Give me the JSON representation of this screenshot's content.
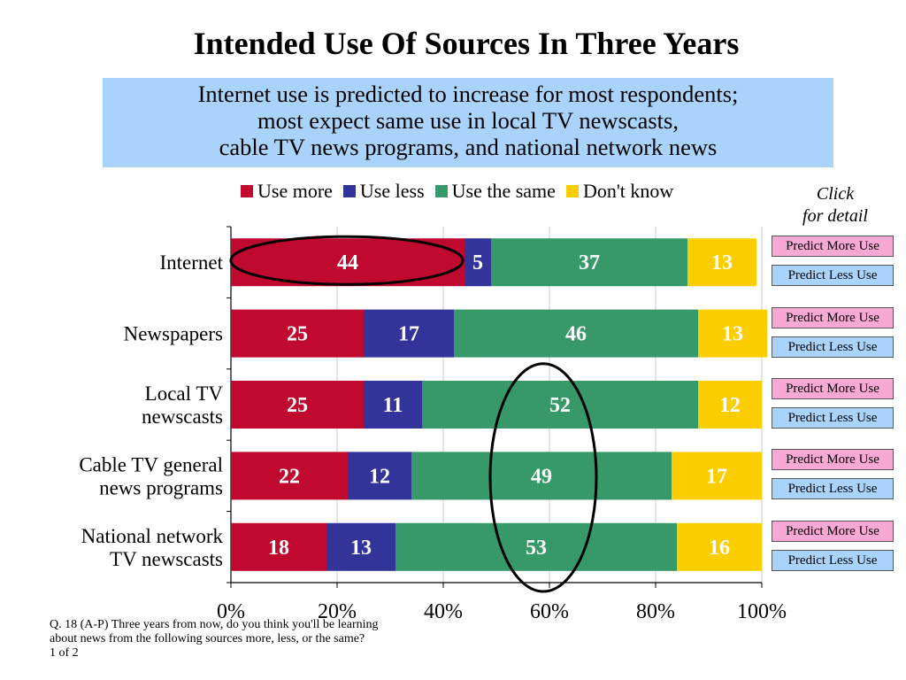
{
  "title": "Intended Use Of Sources In Three Years",
  "subtitle": [
    "Internet use is predicted to increase for most respondents;",
    "most expect same use in local TV newscasts,",
    "cable TV news programs, and national network news"
  ],
  "click_note": [
    "Click",
    "for detail"
  ],
  "buttons": {
    "more_label": "Predict More Use",
    "less_label": "Predict Less Use"
  },
  "footnote": [
    "Q. 18 (A-P)  Three years from now, do you think you'll be learning",
    "about news from the following sources more, less, or the same?",
    "1 of 2"
  ],
  "colors": {
    "use_more": "#c0092f",
    "use_less": "#33349a",
    "use_same": "#37996a",
    "dont_know": "#fcce00",
    "subtitle_bg": "#a9d3fb",
    "btn_more": "#f7a8d4",
    "btn_less": "#a9d3fb"
  },
  "chart_data": {
    "type": "bar",
    "orientation": "horizontal",
    "stacked": true,
    "categories": [
      [
        "Internet"
      ],
      [
        "Newspapers"
      ],
      [
        "Local TV",
        "newscasts"
      ],
      [
        "Cable TV general",
        "news programs"
      ],
      [
        "National network",
        "TV newscasts"
      ]
    ],
    "series": [
      {
        "name": "Use more",
        "color": "#c0092f",
        "values": [
          44,
          25,
          25,
          22,
          18
        ]
      },
      {
        "name": "Use less",
        "color": "#33349a",
        "values": [
          5,
          17,
          11,
          12,
          13
        ]
      },
      {
        "name": "Use the same",
        "color": "#37996a",
        "values": [
          37,
          46,
          52,
          49,
          53
        ]
      },
      {
        "name": "Don't know",
        "color": "#fcce00",
        "values": [
          13,
          13,
          12,
          17,
          16
        ]
      }
    ],
    "xlim": [
      0,
      100
    ],
    "xticks": [
      "0%",
      "20%",
      "40%",
      "60%",
      "80%",
      "100%"
    ],
    "grid": true,
    "legend": "top",
    "annotations": [
      {
        "type": "ellipse",
        "target": "Use more",
        "category": "Internet"
      },
      {
        "type": "ellipse",
        "target": "Use the same",
        "categories": [
          "Local TV newscasts",
          "Cable TV general news programs",
          "National network TV newscasts"
        ]
      }
    ]
  }
}
